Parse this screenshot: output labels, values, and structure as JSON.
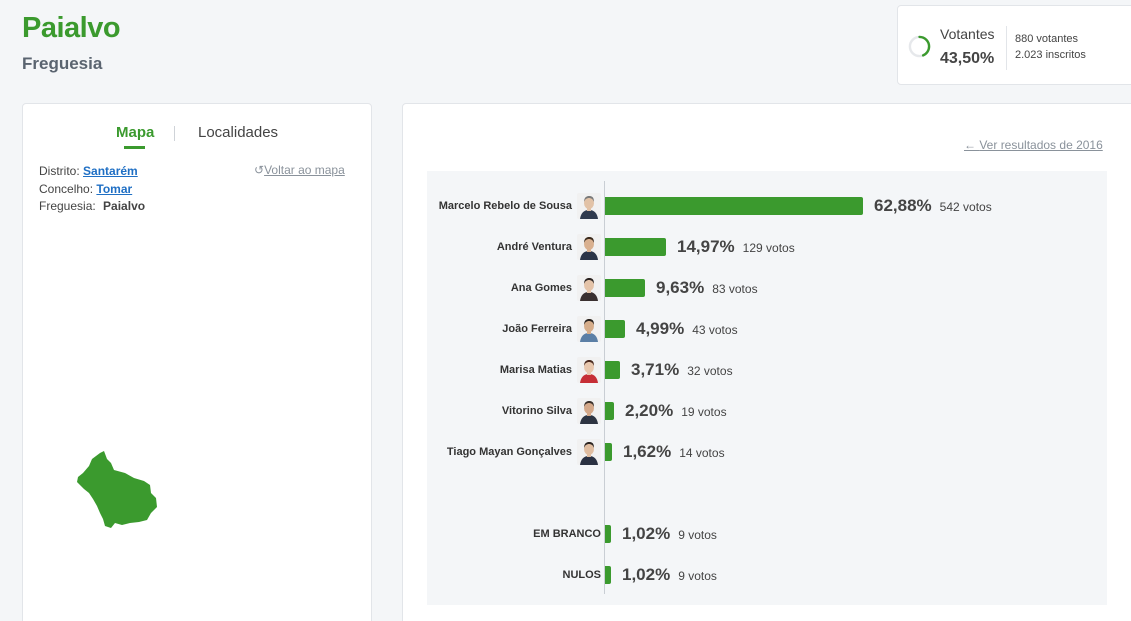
{
  "header": {
    "title": "Paialvo",
    "subtitle": "Freguesia"
  },
  "turnout": {
    "label": "Votantes",
    "percent": "43,50%",
    "fraction": 0.435,
    "voters": "880 votantes",
    "registered": "2.023 inscritos",
    "accent": "#3b9a2e"
  },
  "tabs": {
    "mapa": "Mapa",
    "localidades": "Localidades"
  },
  "location": {
    "distrito_label": "Distrito:",
    "distrito": "Santarém",
    "concelho_label": "Concelho:",
    "concelho": "Tomar",
    "freguesia_label": "Freguesia:",
    "freguesia": "Paialvo",
    "back_to_map": "Voltar ao mapa"
  },
  "results": {
    "previous_link": "Ver resultados de 2016",
    "bar_color": "#3b9a2e",
    "candidates": [
      {
        "name": "Marcelo Rebelo de Sousa",
        "percent": "62,88%",
        "votes": "542 votos",
        "value": 62.88,
        "avatar": "portrait-marcelo",
        "skin": "#e2c2a6",
        "hair": "#7a7a7a",
        "shirt": "#2f3a4d"
      },
      {
        "name": "André Ventura",
        "percent": "14,97%",
        "votes": "129 votos",
        "value": 14.97,
        "avatar": "portrait-ventura",
        "skin": "#d9b08f",
        "hair": "#3a2a1d",
        "shirt": "#2b3447"
      },
      {
        "name": "Ana Gomes",
        "percent": "9,63%",
        "votes": "83 votos",
        "value": 9.63,
        "avatar": "portrait-gomes",
        "skin": "#e4c3a8",
        "hair": "#2a2220",
        "shirt": "#3a3030"
      },
      {
        "name": "João Ferreira",
        "percent": "4,99%",
        "votes": "43 votos",
        "value": 4.99,
        "avatar": "portrait-ferreira",
        "skin": "#d6ad8a",
        "hair": "#2a231e",
        "shirt": "#5b7fa6"
      },
      {
        "name": "Marisa Matias",
        "percent": "3,71%",
        "votes": "32 votos",
        "value": 3.71,
        "avatar": "portrait-matias",
        "skin": "#e8c7ad",
        "hair": "#4a2a1e",
        "shirt": "#c62e36"
      },
      {
        "name": "Vitorino Silva",
        "percent": "2,20%",
        "votes": "19 votos",
        "value": 2.2,
        "avatar": "portrait-silva",
        "skin": "#d4a889",
        "hair": "#3a302a",
        "shirt": "#2d3442"
      },
      {
        "name": "Tiago Mayan Gonçalves",
        "percent": "1,62%",
        "votes": "14 votos",
        "value": 1.62,
        "avatar": "portrait-mayan",
        "skin": "#e0bda0",
        "hair": "#2b2420",
        "shirt": "#2a3142"
      }
    ],
    "others": [
      {
        "name": "EM BRANCO",
        "percent": "1,02%",
        "votes": "9 votos",
        "value": 1.02
      },
      {
        "name": "NULOS",
        "percent": "1,02%",
        "votes": "9 votos",
        "value": 1.02
      }
    ]
  }
}
